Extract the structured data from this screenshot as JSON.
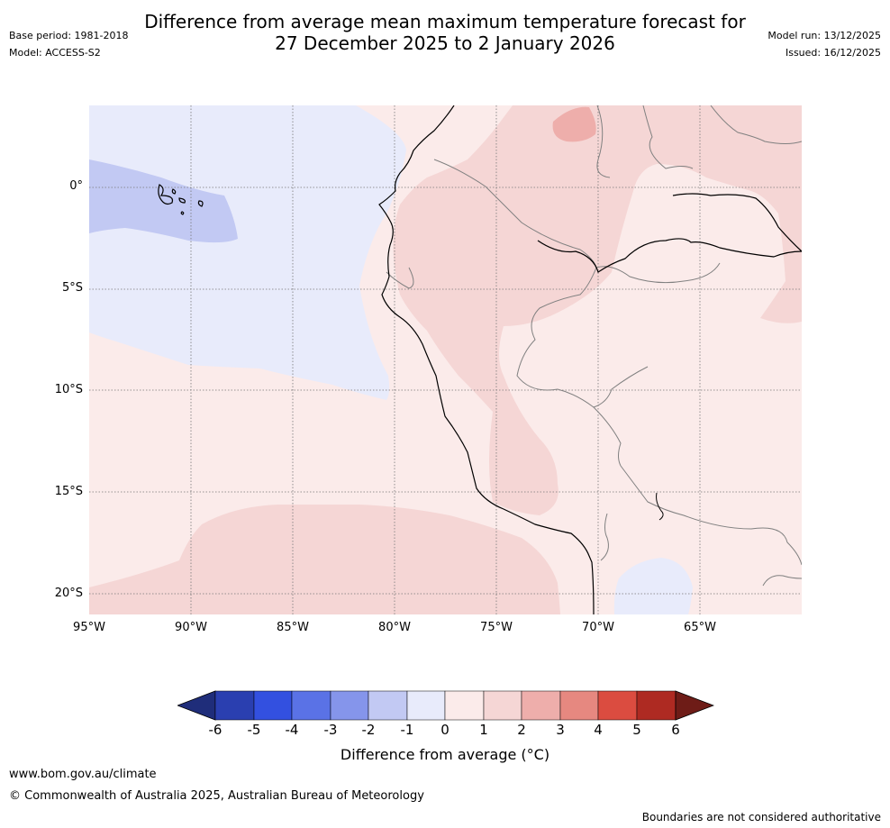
{
  "title": {
    "line1": "Difference from average mean maximum temperature forecast for",
    "line2": "27 December 2025 to 2 January 2026"
  },
  "meta": {
    "base_period": "Base period: 1981-2018",
    "model": "Model: ACCESS-S2",
    "model_run": "Model run: 13/12/2025",
    "issued": "Issued: 16/12/2025"
  },
  "map": {
    "lat_labels": [
      "0°",
      "5°S",
      "10°S",
      "15°S",
      "20°S"
    ],
    "lon_labels": [
      "95°W",
      "90°W",
      "85°W",
      "80°W",
      "75°W",
      "70°W",
      "65°W"
    ]
  },
  "colorbar": {
    "label": "Difference from average (°C)",
    "ticks": [
      "-6",
      "-5",
      "-4",
      "-3",
      "-2",
      "-1",
      "0",
      "1",
      "2",
      "3",
      "4",
      "5",
      "6"
    ],
    "colors": {
      "below_min": "#1f2d7a",
      "m6_m5": "#2a3fb0",
      "m5_m4": "#3350e0",
      "m4_m3": "#5a72e6",
      "m3_m2": "#8595eb",
      "m2_m1": "#c2c9f3",
      "m1_0": "#e8ebfb",
      "0_1": "#fbebea",
      "1_2": "#f5d6d5",
      "2_3": "#eeaeab",
      "3_4": "#e68880",
      "4_5": "#db4c40",
      "5_6": "#ae2a22",
      "above_max": "#6e1c17"
    }
  },
  "footer": {
    "url": "www.bom.gov.au/climate",
    "copyright": "© Commonwealth of Australia 2025, Australian Bureau of Meteorology",
    "disclaimer": "Boundaries are not considered authoritative"
  }
}
